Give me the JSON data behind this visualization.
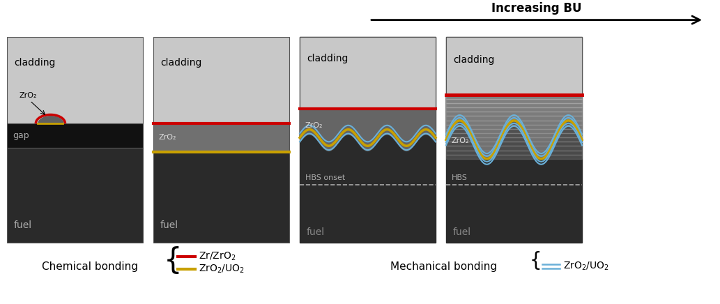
{
  "title_arrow": "Increasing BU",
  "panel_labels": [
    "cladding",
    "cladding",
    "cladding",
    "cladding"
  ],
  "fuel_label": "fuel",
  "gap_label": "gap",
  "zro2_label": "ZrO₂",
  "hbs_onset_label": "HBS onset",
  "hbs_label": "HBS",
  "cladding_color": "#c8c8c8",
  "fuel_color": "#2a2a2a",
  "gap_color": "#111111",
  "zro2_color": "#808080",
  "zro2_dark_color": "#555555",
  "red_line_color": "#cc0000",
  "yellow_line_color": "#c8a000",
  "blue_line_color": "#6ab0d8",
  "bottom_label_chemical": "Chemical bonding",
  "bottom_label_mechanical": "Mechanical bonding",
  "legend_chem_1": "Zr/ZrO₂",
  "legend_chem_2": "ZrO₂/UO₂",
  "legend_mech": "ZrO₂/UO₂",
  "background_color": "#ffffff"
}
